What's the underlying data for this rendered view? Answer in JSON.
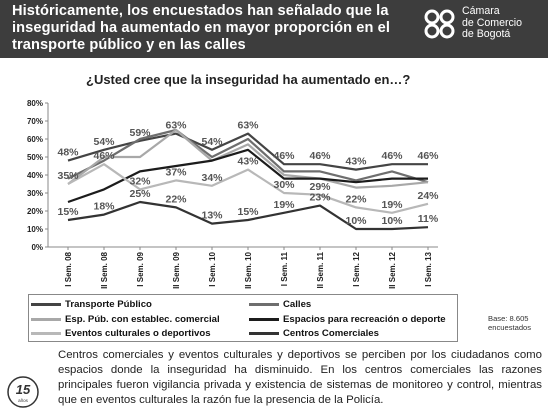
{
  "header": {
    "title": "Históricamente, los encuestados han señalado que la inseguridad ha aumentado en mayor proporción en el transporte público y en las calles",
    "logo_line1": "Cámara",
    "logo_line2": "de Comercio",
    "logo_line3": "de Bogotá"
  },
  "chart_data": {
    "type": "line",
    "title": "¿Usted cree que la inseguridad ha aumentado en…?",
    "categories": [
      "I Sem. 08",
      "II Sem. 08",
      "I Sem. 09",
      "II Sem. 09",
      "I Sem. 10",
      "II Sem. 10",
      "I Sem. 11",
      "II Sem. 11",
      "I Sem. 12",
      "II Sem. 12",
      "I Sem. 13"
    ],
    "yticks": [
      "0%",
      "10%",
      "20%",
      "30%",
      "40%",
      "50%",
      "60%",
      "70%",
      "80%"
    ],
    "ylim": [
      0,
      80
    ],
    "grid": false,
    "legend_position": "bottom",
    "series": [
      {
        "name": "Transporte Público",
        "color": "#444444",
        "width": 2.2,
        "values": [
          48,
          54,
          59,
          63,
          54,
          63,
          46,
          46,
          43,
          46,
          46
        ]
      },
      {
        "name": "Calles",
        "color": "#6e6e6e",
        "width": 2.2,
        "values": [
          38,
          48,
          60,
          65,
          50,
          60,
          42,
          42,
          37,
          42,
          36
        ]
      },
      {
        "name": "Esp. Púb. con establec. comercial",
        "color": "#a8a8a8",
        "width": 2.2,
        "values": [
          35,
          50,
          50,
          65,
          48,
          57,
          40,
          38,
          33,
          34,
          36
        ]
      },
      {
        "name": "Espacios para recreación o deporte",
        "color": "#1c1c1c",
        "width": 2.2,
        "values": [
          25,
          32,
          42,
          45,
          48,
          54,
          38,
          38,
          36,
          38,
          38
        ]
      },
      {
        "name": "Eventos culturales o deportivos",
        "color": "#b8b8b8",
        "width": 2.2,
        "values": [
          35,
          46,
          32,
          37,
          34,
          43,
          30,
          29,
          22,
          19,
          24
        ]
      },
      {
        "name": "Centros Comerciales",
        "color": "#333333",
        "width": 2.2,
        "values": [
          15,
          18,
          25,
          22,
          13,
          15,
          19,
          23,
          10,
          10,
          11
        ]
      }
    ],
    "data_labels": [
      {
        "category": 0,
        "value": 48,
        "text": "48%"
      },
      {
        "category": 1,
        "value": 54,
        "text": "54%"
      },
      {
        "category": 2,
        "value": 59,
        "text": "59%"
      },
      {
        "category": 3,
        "value": 63,
        "text": "63%"
      },
      {
        "category": 4,
        "value": 54,
        "text": "54%"
      },
      {
        "category": 5,
        "value": 63,
        "text": "63%"
      },
      {
        "category": 6,
        "value": 46,
        "text": "46%"
      },
      {
        "category": 7,
        "value": 46,
        "text": "46%"
      },
      {
        "category": 8,
        "value": 43,
        "text": "43%"
      },
      {
        "category": 9,
        "value": 46,
        "text": "46%"
      },
      {
        "category": 10,
        "value": 46,
        "text": "46%"
      },
      {
        "category": 0,
        "value": 35,
        "text": "35%"
      },
      {
        "category": 1,
        "value": 46,
        "text": "46%"
      },
      {
        "category": 2,
        "value": 32,
        "text": "32%"
      },
      {
        "category": 3,
        "value": 37,
        "text": "37%"
      },
      {
        "category": 4,
        "value": 34,
        "text": "34%"
      },
      {
        "category": 5,
        "value": 43,
        "text": "43%"
      },
      {
        "category": 6,
        "value": 30,
        "text": "30%"
      },
      {
        "category": 7,
        "value": 29,
        "text": "29%"
      },
      {
        "category": 8,
        "value": 22,
        "text": "22%"
      },
      {
        "category": 9,
        "value": 19,
        "text": "19%"
      },
      {
        "category": 10,
        "value": 24,
        "text": "24%"
      },
      {
        "category": 0,
        "value": 15,
        "text": "15%"
      },
      {
        "category": 1,
        "value": 18,
        "text": "18%"
      },
      {
        "category": 2,
        "value": 25,
        "text": "25%"
      },
      {
        "category": 3,
        "value": 22,
        "text": "22%"
      },
      {
        "category": 4,
        "value": 13,
        "text": "13%"
      },
      {
        "category": 5,
        "value": 15,
        "text": "15%"
      },
      {
        "category": 6,
        "value": 19,
        "text": "19%"
      },
      {
        "category": 7,
        "value": 23,
        "text": "23%"
      },
      {
        "category": 8,
        "value": 10,
        "text": "10%"
      },
      {
        "category": 9,
        "value": 10,
        "text": "10%"
      },
      {
        "category": 10,
        "value": 11,
        "text": "11%"
      }
    ]
  },
  "base_note": "Base: 8.605 encuestados",
  "footer_text": "Centros comerciales y eventos culturales y deportivos se perciben por los ciudadanos como espacios donde la inseguridad ha disminuido. En los centros comerciales las razones principales fueron vigilancia privada y existencia de sistemas de monitoreo y control, mientras que en eventos culturales la razón fue la presencia de la Policía.",
  "badge": {
    "number": "15",
    "unit": "años"
  }
}
